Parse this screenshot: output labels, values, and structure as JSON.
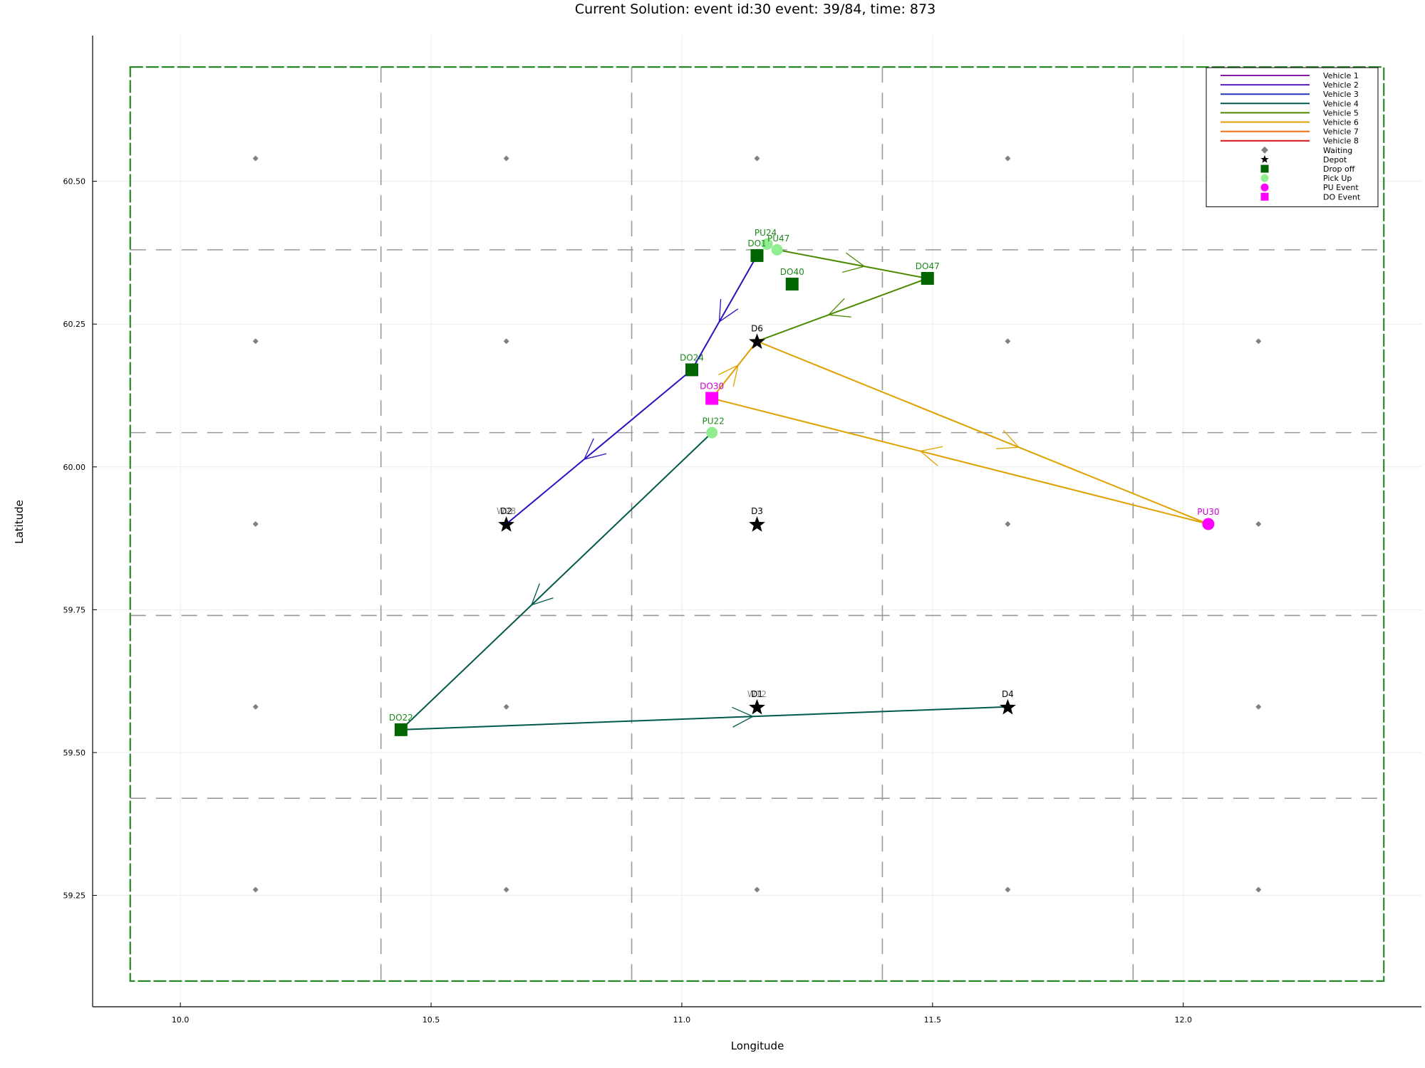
{
  "chart_data": {
    "type": "scatter",
    "title": "Current Solution: event id:30 event: 39/84, time: 873",
    "xlabel": "Longitude",
    "ylabel": "Latitude",
    "xlim": [
      9.825,
      12.475
    ],
    "ylim": [
      59.055,
      60.755
    ],
    "xticks": [
      {
        "v": 10.0,
        "label": "10.0"
      },
      {
        "v": 10.5,
        "label": "10.5"
      },
      {
        "v": 11.0,
        "label": "11.0"
      },
      {
        "v": 11.5,
        "label": "11.5"
      },
      {
        "v": 12.0,
        "label": "12.0"
      }
    ],
    "yticks": [
      {
        "v": 59.25,
        "label": "59.25"
      },
      {
        "v": 59.5,
        "label": "59.50"
      },
      {
        "v": 59.75,
        "label": "59.75"
      },
      {
        "v": 60.0,
        "label": "60.00"
      },
      {
        "v": 60.25,
        "label": "60.25"
      },
      {
        "v": 60.5,
        "label": "60.50"
      }
    ],
    "grid": true,
    "legend_position": "top-right",
    "region": {
      "xmin": 9.9,
      "xmax": 12.4,
      "ymin": 59.1,
      "ymax": 60.7,
      "color": "#2a8a2a"
    },
    "zone_lines": {
      "x": [
        10.4,
        10.9,
        11.4,
        11.9
      ],
      "y": [
        59.42,
        59.74,
        60.06,
        60.38
      ],
      "color": "#999999"
    },
    "waiting_points": {
      "x": [
        10.15,
        10.65,
        11.15,
        11.65,
        12.15
      ],
      "y": [
        59.26,
        59.58,
        59.9,
        60.22,
        60.54
      ],
      "color": "#808080"
    },
    "legend": [
      {
        "label": "Vehicle 1",
        "kind": "line",
        "color": "#8b1aa6"
      },
      {
        "label": "Vehicle 2",
        "kind": "line",
        "color": "#5a1ac4"
      },
      {
        "label": "Vehicle 3",
        "kind": "line",
        "color": "#2233bb"
      },
      {
        "label": "Vehicle 4",
        "kind": "line",
        "color": "#00594a"
      },
      {
        "label": "Vehicle 5",
        "kind": "line",
        "color": "#4b8a00"
      },
      {
        "label": "Vehicle 6",
        "kind": "line",
        "color": "#e0a000"
      },
      {
        "label": "Vehicle 7",
        "kind": "line",
        "color": "#f06a10"
      },
      {
        "label": "Vehicle 8",
        "kind": "line",
        "color": "#e01010"
      },
      {
        "label": "Waiting",
        "kind": "diamond",
        "color": "#808080"
      },
      {
        "label": "Depot",
        "kind": "star",
        "color": "#000000"
      },
      {
        "label": "Drop off",
        "kind": "square",
        "color": "#006400"
      },
      {
        "label": "Pick Up",
        "kind": "circle",
        "color": "#90ee90"
      },
      {
        "label": "PU Event",
        "kind": "circle",
        "color": "#ff00ff"
      },
      {
        "label": "DO Event",
        "kind": "square",
        "color": "#ff00ff"
      }
    ],
    "routes": [
      {
        "vehicle": 3,
        "color": "#2a10c0",
        "points": [
          [
            11.15,
            60.37
          ],
          [
            11.02,
            60.17
          ],
          [
            10.65,
            59.9
          ]
        ]
      },
      {
        "vehicle": 4,
        "color": "#00594a",
        "points": [
          [
            11.06,
            60.06
          ],
          [
            10.44,
            59.54
          ],
          [
            11.65,
            59.58
          ]
        ]
      },
      {
        "vehicle": 5,
        "color": "#4b8a00",
        "points": [
          [
            11.19,
            60.38
          ],
          [
            11.49,
            60.33
          ],
          [
            11.15,
            60.22
          ]
        ]
      },
      {
        "vehicle": 6,
        "color": "#e0a000",
        "points": [
          [
            11.06,
            60.12
          ],
          [
            11.15,
            60.22
          ],
          [
            12.05,
            59.9
          ],
          [
            11.06,
            60.12
          ]
        ]
      }
    ],
    "depots": [
      {
        "x": 10.65,
        "y": 59.9,
        "label": "D2"
      },
      {
        "x": 11.15,
        "y": 59.9,
        "label": "D3"
      },
      {
        "x": 11.15,
        "y": 60.22,
        "label": "D6"
      },
      {
        "x": 11.15,
        "y": 59.58,
        "label": "D1"
      },
      {
        "x": 11.65,
        "y": 59.58,
        "label": "D4"
      }
    ],
    "dropoffs": [
      {
        "x": 11.15,
        "y": 60.37,
        "label": "DO1"
      },
      {
        "x": 11.22,
        "y": 60.32,
        "label": "DO40"
      },
      {
        "x": 11.49,
        "y": 60.33,
        "label": "DO47"
      },
      {
        "x": 11.02,
        "y": 60.17,
        "label": "DO24"
      },
      {
        "x": 10.44,
        "y": 59.54,
        "label": "DO22"
      }
    ],
    "pickups": [
      {
        "x": 11.17,
        "y": 60.39,
        "label": "PU24"
      },
      {
        "x": 11.19,
        "y": 60.38,
        "label": "PU47"
      },
      {
        "x": 11.06,
        "y": 60.06,
        "label": "PU22"
      }
    ],
    "pu_events": [
      {
        "x": 12.05,
        "y": 59.9,
        "label": "PU30"
      }
    ],
    "do_events": [
      {
        "x": 11.06,
        "y": 60.12,
        "label": "DO30"
      }
    ],
    "waiting_labels": [
      {
        "x": 10.65,
        "y": 59.9,
        "label": "W28"
      },
      {
        "x": 11.15,
        "y": 59.58,
        "label": "W12"
      }
    ]
  }
}
